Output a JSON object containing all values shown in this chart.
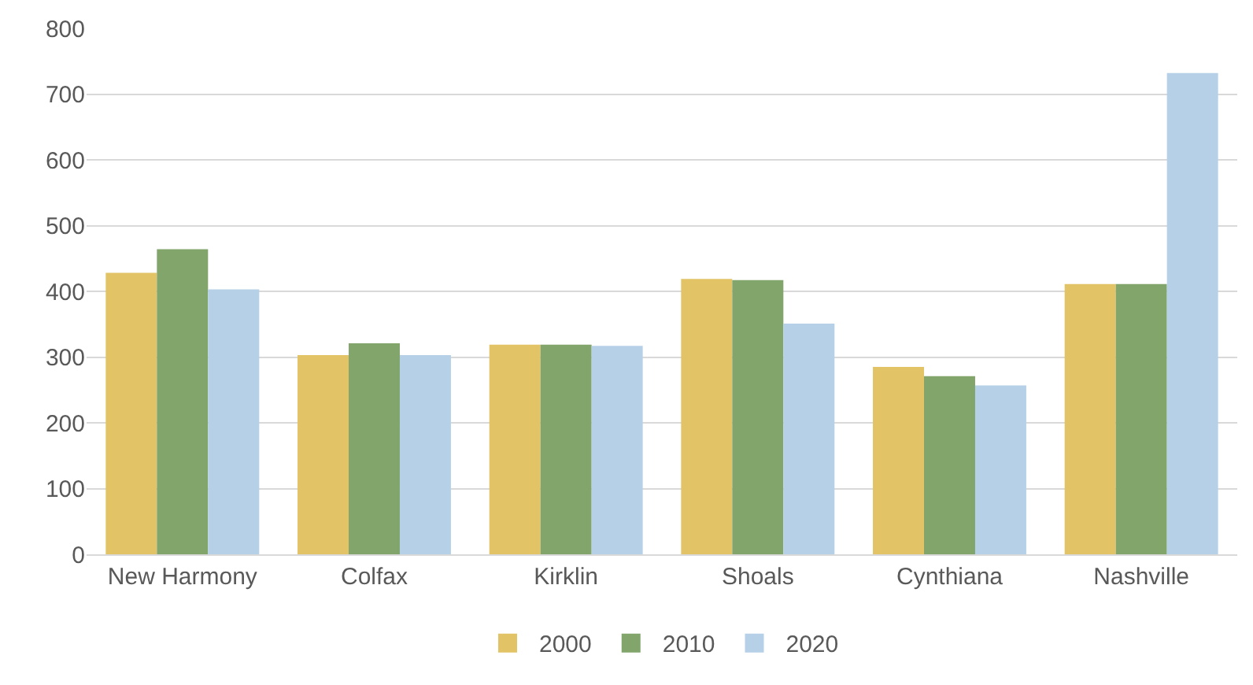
{
  "chart_data": {
    "type": "bar",
    "categories": [
      "New Harmony",
      "Colfax",
      "Kirklin",
      "Shoals",
      "Cynthiana",
      "Nashville"
    ],
    "series": [
      {
        "name": "2000",
        "color": "#e2c366",
        "values": [
          428,
          303,
          319,
          419,
          285,
          411
        ]
      },
      {
        "name": "2010",
        "color": "#82a56b",
        "values": [
          464,
          321,
          319,
          417,
          271,
          411
        ]
      },
      {
        "name": "2020",
        "color": "#b6d1e7",
        "values": [
          403,
          303,
          317,
          351,
          257,
          732
        ]
      }
    ],
    "ylim": [
      0,
      800
    ],
    "yticks": [
      0,
      100,
      200,
      300,
      400,
      500,
      600,
      700,
      800
    ],
    "grid": "y",
    "legend": "bottom"
  }
}
